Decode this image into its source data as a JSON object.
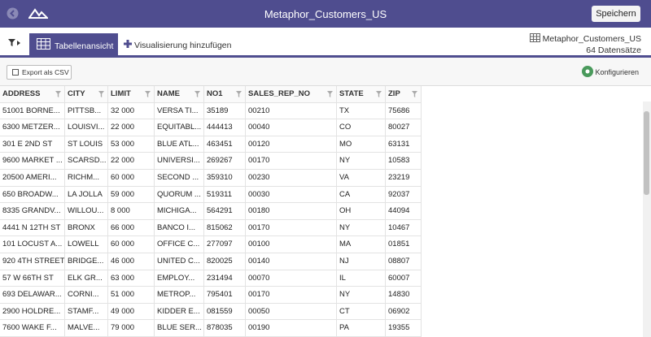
{
  "header": {
    "title": "Metaphor_Customers_US",
    "save_button": "Speichern"
  },
  "toolbar": {
    "active_tab": "Tabellenansicht",
    "add_tab": "Visualisierung hinzufügen",
    "dataset_name": "Metaphor_Customers_US",
    "record_count": "64 Datensätze"
  },
  "actions": {
    "export": "Export als CSV",
    "configure": "Konfigurieren"
  },
  "table": {
    "columns": [
      "ADDRESS",
      "CITY",
      "LIMIT",
      "NAME",
      "NO1",
      "SALES_REP_NO",
      "STATE",
      "ZIP"
    ],
    "rows": [
      [
        "51001 BORNE...",
        "PITTSB...",
        "32 000",
        "VERSA TI...",
        "35189",
        "00210",
        "TX",
        "75686"
      ],
      [
        "6300 METZER...",
        "LOUISVI...",
        "22 000",
        "EQUITABL...",
        "444413",
        "00040",
        "CO",
        "80027"
      ],
      [
        "301 E 2ND ST",
        "ST LOUIS",
        "53 000",
        "BLUE ATL...",
        "463451",
        "00120",
        "MO",
        "63131"
      ],
      [
        "9600 MARKET ...",
        "SCARSD...",
        "22 000",
        "UNIVERSI...",
        "269267",
        "00170",
        "NY",
        "10583"
      ],
      [
        "20500 AMERI...",
        "RICHM...",
        "60 000",
        "SECOND ...",
        "359310",
        "00230",
        "VA",
        "23219"
      ],
      [
        "650 BROADW...",
        "LA JOLLA",
        "59 000",
        "QUORUM ...",
        "519311",
        "00030",
        "CA",
        "92037"
      ],
      [
        "8335 GRANDV...",
        "WILLOU...",
        "8 000",
        "MICHIGA...",
        "564291",
        "00180",
        "OH",
        "44094"
      ],
      [
        "4441 N 12TH ST",
        "BRONX",
        "66 000",
        "BANCO I...",
        "815062",
        "00170",
        "NY",
        "10467"
      ],
      [
        "101 LOCUST A...",
        "LOWELL",
        "60 000",
        "OFFICE C...",
        "277097",
        "00100",
        "MA",
        "01851"
      ],
      [
        "920 4TH STREET",
        "BRIDGE...",
        "46 000",
        "UNITED C...",
        "820025",
        "00140",
        "NJ",
        "08807"
      ],
      [
        "57 W 66TH ST",
        "ELK GR...",
        "63 000",
        "EMPLOY...",
        "231494",
        "00070",
        "IL",
        "60007"
      ],
      [
        "693 DELAWAR...",
        "CORNI...",
        "51 000",
        "METROP...",
        "795401",
        "00170",
        "NY",
        "14830"
      ],
      [
        "2900 HOLDRE...",
        "STAMF...",
        "49 000",
        "KIDDER E...",
        "081559",
        "00050",
        "CT",
        "06902"
      ],
      [
        "7600 WAKE F...",
        "MALVE...",
        "79 000",
        "BLUE SER...",
        "878035",
        "00190",
        "PA",
        "19355"
      ]
    ]
  }
}
